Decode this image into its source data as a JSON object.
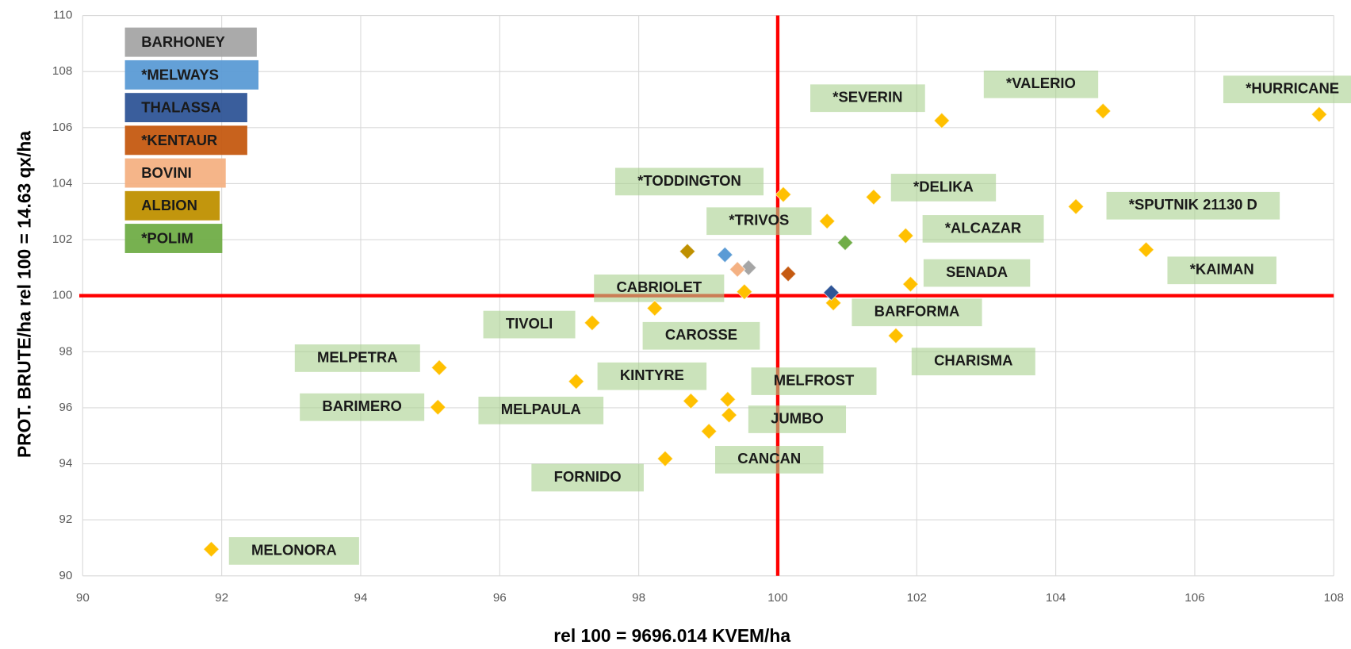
{
  "chart_data": {
    "type": "scatter",
    "xlabel": "rel 100 = 9696.014 KVEM/ha",
    "ylabel": "PROT. BRUTE/ha  rel 100 = 14.63 qx/ha",
    "xlim": [
      90,
      108
    ],
    "ylim": [
      90,
      110
    ],
    "xticks": [
      90,
      92,
      94,
      96,
      98,
      100,
      102,
      104,
      106,
      108
    ],
    "yticks": [
      90,
      92,
      94,
      96,
      98,
      100,
      102,
      104,
      106,
      108,
      110
    ],
    "grid": true,
    "legend": "top-left",
    "reference_lines": {
      "x": 100,
      "y": 100,
      "color": "#ff0000"
    },
    "series": [
      {
        "color": "#ffc000",
        "labels": [
          "MELONORA",
          "*HURRICANE",
          "*VALERIO",
          "*SEVERIN",
          "*TODDINGTON",
          "*DELIKA",
          "*TRIVOS",
          "*ALCAZAR",
          "*SPUTNIK 21130 D",
          "*KAIMAN",
          "SENADA",
          "CABRIOLET",
          "BARFORMA",
          "CAROSSE",
          "TIVOLI",
          "CHARISMA",
          "MELPETRA",
          "KINTYRE",
          "MELFROST",
          "BARIMERO",
          "MELPAULA",
          "JUMBO",
          "CANCAN",
          "FORNIDO"
        ],
        "x": [
          91.85,
          107.79,
          104.68,
          102.36,
          100.08,
          101.38,
          100.71,
          101.84,
          104.29,
          105.3,
          101.91,
          99.52,
          100.8,
          98.23,
          97.33,
          101.7,
          95.13,
          97.1,
          99.28,
          95.11,
          98.75,
          99.3,
          99.01,
          98.38
        ],
        "values": [
          90.95,
          106.47,
          106.59,
          106.25,
          103.61,
          103.52,
          102.66,
          102.14,
          103.18,
          101.64,
          100.41,
          100.14,
          99.74,
          99.55,
          99.03,
          98.57,
          97.43,
          96.94,
          96.3,
          96.02,
          96.24,
          95.74,
          95.16,
          94.18
        ]
      },
      {
        "name": "BARHONEY",
        "color": "#a5a5a5",
        "x": [
          99.58
        ],
        "values": [
          101.0
        ]
      },
      {
        "name": "*MELWAYS",
        "color": "#5b9bd5",
        "x": [
          99.24
        ],
        "values": [
          101.46
        ]
      },
      {
        "name": "THALASSA",
        "color": "#2f5597",
        "x": [
          100.77
        ],
        "values": [
          100.11
        ]
      },
      {
        "name": "*KENTAUR",
        "color": "#c55a11",
        "x": [
          100.15
        ],
        "values": [
          100.78
        ]
      },
      {
        "name": "BOVINI",
        "color": "#f4b183",
        "x": [
          99.42
        ],
        "values": [
          100.94
        ]
      },
      {
        "name": "ALBION",
        "color": "#bf9000",
        "x": [
          98.7
        ],
        "values": [
          101.58
        ]
      },
      {
        "name": "*POLIM",
        "color": "#70ad47",
        "x": [
          100.97
        ],
        "values": [
          101.89
        ]
      }
    ]
  }
}
